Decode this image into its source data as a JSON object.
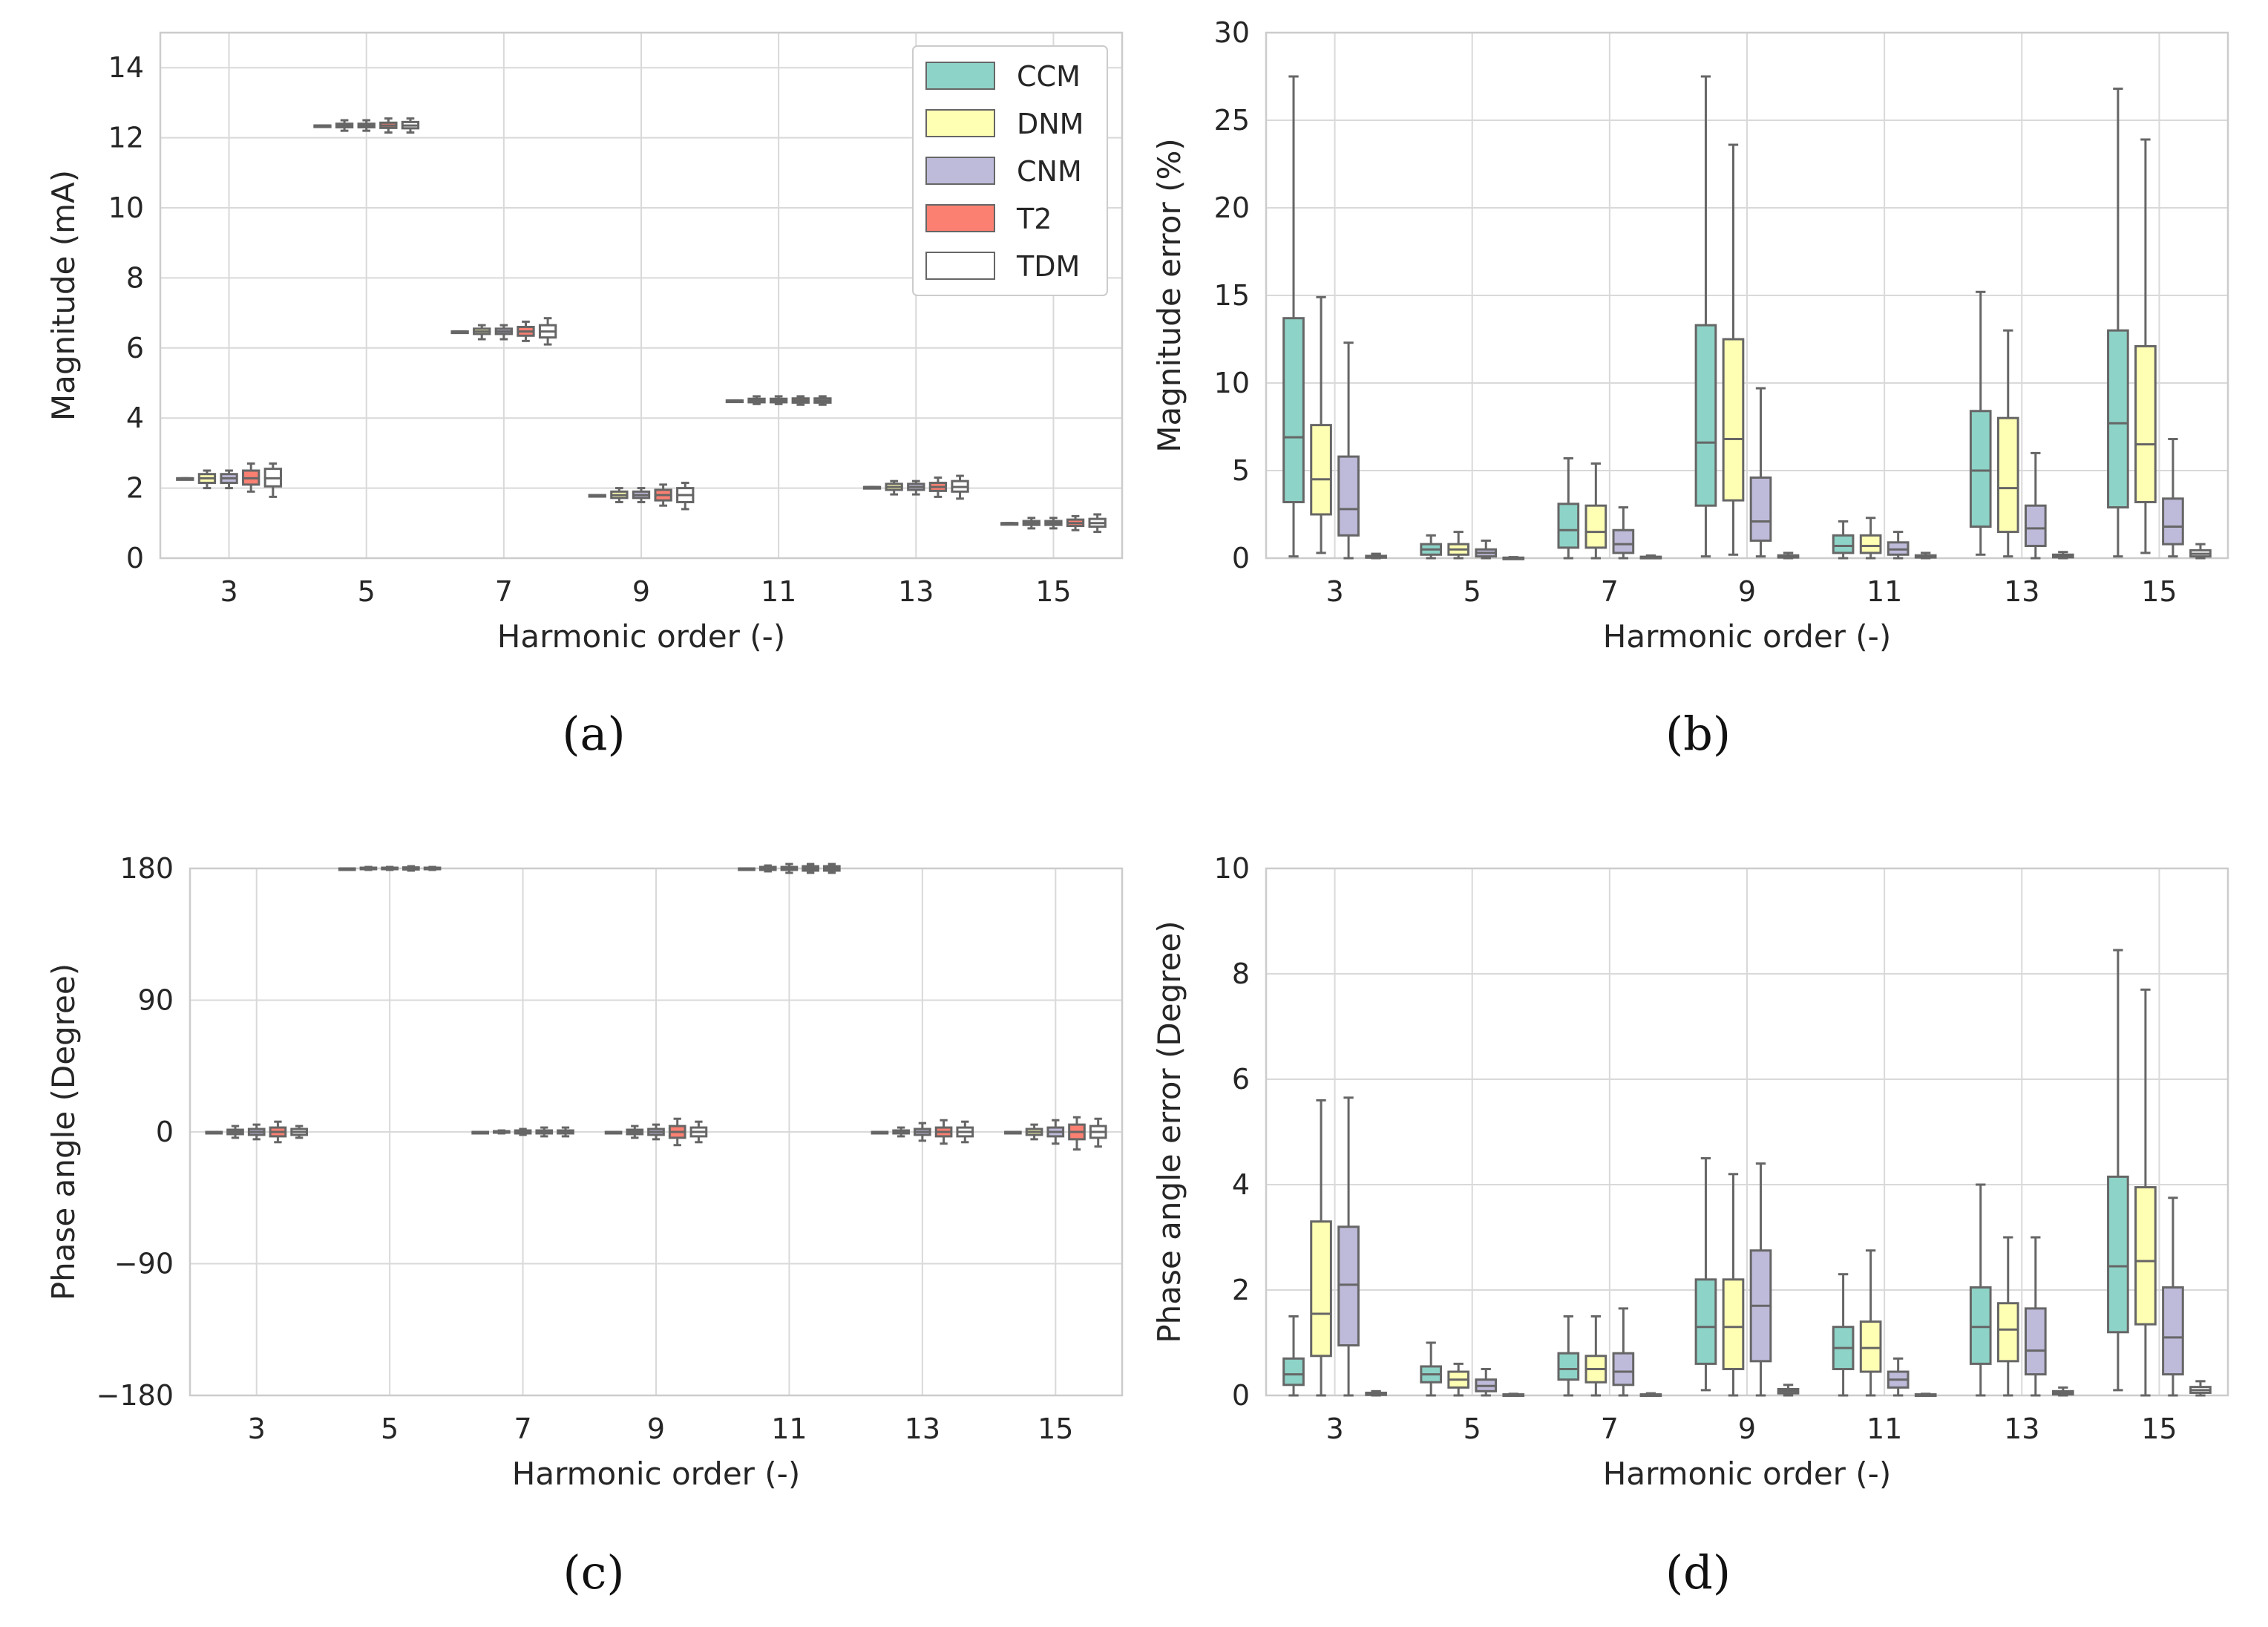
{
  "colors": {
    "CCM": "#8dd3c7",
    "DNM": "#ffffb3",
    "CNM": "#bebada",
    "T2": "#fb8072",
    "TDM": "#ffffff",
    "edge": "#666666",
    "grid": "#d9d9d9",
    "frame": "#cccccc"
  },
  "chart_data": [
    {
      "id": "a",
      "caption": "(a)",
      "type": "boxplot",
      "xlabel": "Harmonic order (-)",
      "ylabel": "Magnitude (mA)",
      "ylim": [
        0,
        15
      ],
      "yticks": [
        0,
        2,
        4,
        6,
        8,
        10,
        12,
        14
      ],
      "ytick_labels": [
        "0",
        "2",
        "4",
        "6",
        "8",
        "10",
        "12",
        "14"
      ],
      "categories": [
        "3",
        "5",
        "7",
        "9",
        "11",
        "13",
        "15"
      ],
      "legend": {
        "position": "top-right",
        "entries": [
          "CCM",
          "DNM",
          "CNM",
          "T2",
          "TDM"
        ]
      },
      "series": [
        {
          "name": "CCM",
          "boxes": [
            [
              2.28,
              2.28,
              2.28,
              2.28,
              2.28
            ],
            [
              12.35,
              12.35,
              12.35,
              12.35,
              12.35
            ],
            [
              6.47,
              6.47,
              6.47,
              6.47,
              6.47
            ],
            [
              1.8,
              1.8,
              1.8,
              1.8,
              1.8
            ],
            [
              4.5,
              4.5,
              4.5,
              4.5,
              4.5
            ],
            [
              2.03,
              2.03,
              2.03,
              2.03,
              2.03
            ],
            [
              1.0,
              1.0,
              1.0,
              1.0,
              1.0
            ]
          ]
        },
        {
          "name": "DNM",
          "boxes": [
            [
              2.0,
              2.15,
              2.28,
              2.4,
              2.5
            ],
            [
              12.2,
              12.3,
              12.35,
              12.4,
              12.5
            ],
            [
              6.25,
              6.4,
              6.47,
              6.55,
              6.65
            ],
            [
              1.6,
              1.72,
              1.8,
              1.9,
              2.0
            ],
            [
              4.4,
              4.45,
              4.5,
              4.55,
              4.62
            ],
            [
              1.82,
              1.95,
              2.03,
              2.12,
              2.2
            ],
            [
              0.85,
              0.95,
              1.0,
              1.06,
              1.15
            ]
          ]
        },
        {
          "name": "CNM",
          "boxes": [
            [
              2.0,
              2.15,
              2.28,
              2.4,
              2.5
            ],
            [
              12.2,
              12.3,
              12.35,
              12.4,
              12.5
            ],
            [
              6.25,
              6.4,
              6.47,
              6.55,
              6.65
            ],
            [
              1.6,
              1.72,
              1.8,
              1.9,
              2.0
            ],
            [
              4.4,
              4.45,
              4.5,
              4.55,
              4.62
            ],
            [
              1.82,
              1.95,
              2.03,
              2.12,
              2.2
            ],
            [
              0.85,
              0.95,
              1.0,
              1.06,
              1.15
            ]
          ]
        },
        {
          "name": "T2",
          "boxes": [
            [
              1.9,
              2.1,
              2.28,
              2.5,
              2.7
            ],
            [
              12.15,
              12.28,
              12.35,
              12.43,
              12.55
            ],
            [
              6.2,
              6.35,
              6.47,
              6.6,
              6.75
            ],
            [
              1.5,
              1.65,
              1.8,
              1.95,
              2.1
            ],
            [
              4.38,
              4.44,
              4.5,
              4.56,
              4.62
            ],
            [
              1.75,
              1.92,
              2.03,
              2.15,
              2.3
            ],
            [
              0.8,
              0.92,
              1.0,
              1.1,
              1.2
            ]
          ]
        },
        {
          "name": "TDM",
          "boxes": [
            [
              1.75,
              2.05,
              2.28,
              2.55,
              2.7
            ],
            [
              12.15,
              12.27,
              12.35,
              12.45,
              12.55
            ],
            [
              6.1,
              6.3,
              6.47,
              6.65,
              6.85
            ],
            [
              1.4,
              1.6,
              1.8,
              2.0,
              2.15
            ],
            [
              4.38,
              4.44,
              4.5,
              4.56,
              4.62
            ],
            [
              1.7,
              1.9,
              2.03,
              2.2,
              2.35
            ],
            [
              0.75,
              0.9,
              1.0,
              1.12,
              1.25
            ]
          ]
        }
      ]
    },
    {
      "id": "b",
      "caption": "(b)",
      "type": "boxplot",
      "xlabel": "Harmonic order (-)",
      "ylabel": "Magnitude error (%)",
      "ylim": [
        0,
        30
      ],
      "yticks": [
        0,
        5,
        10,
        15,
        20,
        25,
        30
      ],
      "ytick_labels": [
        "0",
        "5",
        "10",
        "15",
        "20",
        "25",
        "30"
      ],
      "categories": [
        "3",
        "5",
        "7",
        "9",
        "11",
        "13",
        "15"
      ],
      "series": [
        {
          "name": "CCM",
          "boxes": [
            [
              0.1,
              3.2,
              6.9,
              13.7,
              27.5
            ],
            [
              0.0,
              0.2,
              0.5,
              0.8,
              1.3
            ],
            [
              0.0,
              0.6,
              1.6,
              3.1,
              5.7
            ],
            [
              0.1,
              3.0,
              6.6,
              13.3,
              27.5
            ],
            [
              0.0,
              0.3,
              0.7,
              1.3,
              2.1
            ],
            [
              0.2,
              1.8,
              5.0,
              8.4,
              15.2
            ],
            [
              0.1,
              2.9,
              7.7,
              13.0,
              26.8
            ]
          ]
        },
        {
          "name": "DNM",
          "boxes": [
            [
              0.3,
              2.5,
              4.5,
              7.6,
              14.9
            ],
            [
              0.0,
              0.2,
              0.5,
              0.8,
              1.5
            ],
            [
              0.0,
              0.6,
              1.5,
              3.0,
              5.4
            ],
            [
              0.2,
              3.3,
              6.8,
              12.5,
              23.6
            ],
            [
              0.0,
              0.3,
              0.7,
              1.3,
              2.3
            ],
            [
              0.1,
              1.5,
              4.0,
              8.0,
              13.0
            ],
            [
              0.3,
              3.2,
              6.5,
              12.1,
              23.9
            ]
          ]
        },
        {
          "name": "CNM",
          "boxes": [
            [
              0.0,
              1.3,
              2.8,
              5.8,
              12.3
            ],
            [
              0.0,
              0.1,
              0.3,
              0.5,
              1.0
            ],
            [
              0.0,
              0.3,
              0.8,
              1.6,
              2.9
            ],
            [
              0.1,
              1.0,
              2.1,
              4.6,
              9.7
            ],
            [
              0.0,
              0.2,
              0.5,
              0.9,
              1.5
            ],
            [
              0.0,
              0.7,
              1.7,
              3.0,
              6.0
            ],
            [
              0.1,
              0.8,
              1.8,
              3.4,
              6.8
            ]
          ]
        },
        {
          "name": "TDM",
          "boxes": [
            [
              0.0,
              0.03,
              0.08,
              0.13,
              0.25
            ],
            [
              0.0,
              0.01,
              0.02,
              0.03,
              0.06
            ],
            [
              0.0,
              0.02,
              0.05,
              0.08,
              0.15
            ],
            [
              0.0,
              0.04,
              0.1,
              0.16,
              0.3
            ],
            [
              0.0,
              0.04,
              0.1,
              0.16,
              0.3
            ],
            [
              0.0,
              0.05,
              0.12,
              0.2,
              0.35
            ],
            [
              0.0,
              0.1,
              0.25,
              0.45,
              0.8
            ]
          ]
        }
      ]
    },
    {
      "id": "c",
      "caption": "(c)",
      "type": "boxplot",
      "xlabel": "Harmonic order (-)",
      "ylabel": "Phase angle (Degree)",
      "ylim": [
        -180,
        180
      ],
      "yticks": [
        -180,
        -90,
        0,
        90,
        180
      ],
      "ytick_labels": [
        "−180",
        "−90",
        "0",
        "90",
        "180"
      ],
      "categories": [
        "3",
        "5",
        "7",
        "9",
        "11",
        "13",
        "15"
      ],
      "series": [
        {
          "name": "CCM",
          "boxes": [
            [
              0,
              0,
              0,
              0,
              0
            ],
            [
              180,
              180,
              180,
              180,
              180
            ],
            [
              0,
              0,
              0,
              0,
              0
            ],
            [
              0,
              0,
              0,
              0,
              0
            ],
            [
              180,
              180,
              180,
              180,
              180
            ],
            [
              0,
              0,
              0,
              0,
              0
            ],
            [
              0,
              0,
              0,
              0,
              0
            ]
          ]
        },
        {
          "name": "DNM",
          "boxes": [
            [
              -4,
              -1.5,
              0,
              1.5,
              4
            ],
            [
              179,
              179.5,
              180,
              180.5,
              181
            ],
            [
              -1,
              -0.5,
              0,
              0.5,
              1
            ],
            [
              -4,
              -1.5,
              0,
              1.5,
              4
            ],
            [
              178,
              179,
              180,
              181,
              182
            ],
            [
              -3,
              -1,
              0,
              1,
              3
            ],
            [
              -5,
              -2,
              0,
              2,
              5
            ]
          ]
        },
        {
          "name": "CNM",
          "boxes": [
            [
              -5,
              -2,
              0,
              2,
              5
            ],
            [
              179,
              179.5,
              180,
              180.5,
              181
            ],
            [
              -2,
              -1,
              0,
              1,
              2
            ],
            [
              -5,
              -2,
              0,
              2,
              5
            ],
            [
              177,
              179,
              180,
              181,
              183
            ],
            [
              -6,
              -2,
              0,
              2,
              6
            ],
            [
              -8,
              -3,
              0,
              3,
              8
            ]
          ]
        },
        {
          "name": "T2",
          "boxes": [
            [
              -7,
              -3,
              0,
              3,
              7
            ],
            [
              178.5,
              179.3,
              180,
              180.7,
              181.5
            ],
            [
              -3,
              -1,
              0,
              1,
              3
            ],
            [
              -9,
              -4,
              0,
              4,
              9
            ],
            [
              177,
              178.5,
              180,
              181.5,
              183
            ],
            [
              -8,
              -3,
              0,
              3,
              8
            ],
            [
              -12,
              -5,
              0,
              5,
              10
            ]
          ]
        },
        {
          "name": "TDM",
          "boxes": [
            [
              -4,
              -2,
              0,
              2,
              4
            ],
            [
              179,
              179.5,
              180,
              180.5,
              181
            ],
            [
              -3,
              -1,
              0,
              1,
              3
            ],
            [
              -7,
              -3,
              0,
              3,
              7
            ],
            [
              177,
              178.5,
              180,
              181.5,
              183
            ],
            [
              -7,
              -3,
              0,
              3,
              7
            ],
            [
              -10,
              -4,
              0,
              4,
              9
            ]
          ]
        }
      ]
    },
    {
      "id": "d",
      "caption": "(d)",
      "type": "boxplot",
      "xlabel": "Harmonic order (-)",
      "ylabel": "Phase angle error (Degree)",
      "ylim": [
        0,
        10
      ],
      "yticks": [
        0,
        2,
        4,
        6,
        8,
        10
      ],
      "ytick_labels": [
        "0",
        "2",
        "4",
        "6",
        "8",
        "10"
      ],
      "categories": [
        "3",
        "5",
        "7",
        "9",
        "11",
        "13",
        "15"
      ],
      "series": [
        {
          "name": "CCM",
          "boxes": [
            [
              0.0,
              0.2,
              0.4,
              0.7,
              1.5
            ],
            [
              0.0,
              0.25,
              0.4,
              0.55,
              1.0
            ],
            [
              0.0,
              0.3,
              0.5,
              0.8,
              1.5
            ],
            [
              0.1,
              0.6,
              1.3,
              2.2,
              4.5
            ],
            [
              0.0,
              0.5,
              0.9,
              1.3,
              2.3
            ],
            [
              0.0,
              0.6,
              1.3,
              2.05,
              4.0
            ],
            [
              0.1,
              1.2,
              2.45,
              4.15,
              8.45
            ]
          ]
        },
        {
          "name": "DNM",
          "boxes": [
            [
              0.0,
              0.75,
              1.55,
              3.3,
              5.6
            ],
            [
              0.0,
              0.15,
              0.3,
              0.45,
              0.6
            ],
            [
              0.0,
              0.25,
              0.5,
              0.75,
              1.5
            ],
            [
              0.0,
              0.5,
              1.3,
              2.2,
              4.2
            ],
            [
              0.0,
              0.45,
              0.9,
              1.4,
              2.75
            ],
            [
              0.0,
              0.65,
              1.25,
              1.75,
              3.0
            ],
            [
              0.0,
              1.35,
              2.55,
              3.95,
              7.7
            ]
          ]
        },
        {
          "name": "CNM",
          "boxes": [
            [
              0.0,
              0.95,
              2.1,
              3.2,
              5.65
            ],
            [
              0.0,
              0.08,
              0.18,
              0.3,
              0.5
            ],
            [
              0.0,
              0.2,
              0.45,
              0.8,
              1.65
            ],
            [
              0.0,
              0.65,
              1.7,
              2.75,
              4.4
            ],
            [
              0.0,
              0.15,
              0.3,
              0.45,
              0.7
            ],
            [
              0.0,
              0.4,
              0.85,
              1.65,
              3.0
            ],
            [
              0.0,
              0.4,
              1.1,
              2.05,
              3.75
            ]
          ]
        },
        {
          "name": "TDM",
          "boxes": [
            [
              0.0,
              0.01,
              0.03,
              0.05,
              0.08
            ],
            [
              0.0,
              0.0,
              0.01,
              0.02,
              0.03
            ],
            [
              0.0,
              0.0,
              0.01,
              0.02,
              0.04
            ],
            [
              0.0,
              0.04,
              0.08,
              0.12,
              0.2
            ],
            [
              0.0,
              0.0,
              0.01,
              0.02,
              0.03
            ],
            [
              0.0,
              0.02,
              0.05,
              0.08,
              0.15
            ],
            [
              0.0,
              0.05,
              0.1,
              0.16,
              0.27
            ]
          ]
        }
      ]
    }
  ]
}
